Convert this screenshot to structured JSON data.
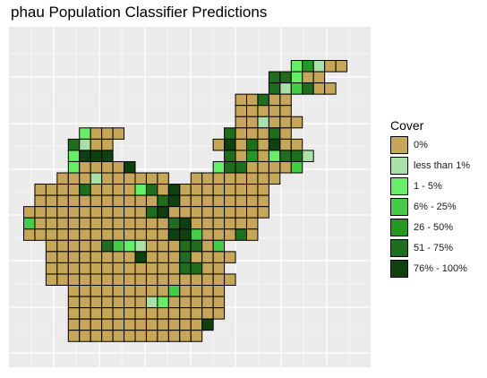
{
  "chart_data": {
    "type": "heatmap",
    "title": "phau Population Classifier Predictions",
    "xlabel": "",
    "ylabel": "",
    "grid": true,
    "legend_placement": "right",
    "legend": {
      "title": "Cover",
      "entries": [
        {
          "label": "0%",
          "color": "#c6a658"
        },
        {
          "label": "less than 1%",
          "color": "#a8e0a8"
        },
        {
          "label": "1 - 5%",
          "color": "#66ee66"
        },
        {
          "label": "6% - 25%",
          "color": "#44cc44"
        },
        {
          "label": "26 - 50%",
          "color": "#229922"
        },
        {
          "label": "51 - 75%",
          "color": "#1e6e1e"
        },
        {
          "label": "76% - 100%",
          "color": "#0f4010"
        }
      ]
    },
    "grid_rows": [
      {
        "row": 0,
        "start": 24,
        "cells": "24100"
      },
      {
        "row": 1,
        "start": 22,
        "cells": "55200"
      },
      {
        "row": 2,
        "start": 22,
        "cells": "513500"
      },
      {
        "row": 3,
        "start": 19,
        "cells": "00500"
      },
      {
        "row": 4,
        "start": 19,
        "cells": "00000"
      },
      {
        "row": 5,
        "start": 19,
        "cells": "001000"
      },
      {
        "row": 6,
        "start": 5,
        "cells": "2000",
        "start2": 18,
        "cells2": "500050"
      },
      {
        "row": 7,
        "start": 4,
        "cells": "5100",
        "start2": 17,
        "cells2": "06050600"
      },
      {
        "row": 8,
        "start": 4,
        "cells": "2666",
        "start2": 18,
        "cells2": "50402551"
      },
      {
        "row": 9,
        "start": 4,
        "cells": "200006",
        "start2": 17,
        "cells2": "25500003"
      },
      {
        "row": 10,
        "start": 3,
        "cells": "0001000000",
        "start2": 15,
        "cells2": "00000000"
      },
      {
        "row": 11,
        "start": 1,
        "cells": "000050000250600000000"
      },
      {
        "row": 12,
        "start": 1,
        "cells": "000000000005600000000"
      },
      {
        "row": 13,
        "start": 0,
        "cells": "000000000005600000000",
        "start2": 21,
        "cells2": "0"
      },
      {
        "row": 14,
        "start": 0,
        "cells": "300000000000056000000"
      },
      {
        "row": 15,
        "start": 0,
        "cells": "000000000000066300050"
      },
      {
        "row": 16,
        "start": 2,
        "cells": "0000053210005503"
      },
      {
        "row": 17,
        "start": 2,
        "cells": "00000000600050000"
      },
      {
        "row": 18,
        "start": 2,
        "cells": "0000000000005500"
      },
      {
        "row": 19,
        "start": 2,
        "cells": "00000000000000000"
      },
      {
        "row": 20,
        "start": 4,
        "cells": "00000000030000"
      },
      {
        "row": 21,
        "start": 4,
        "cells": "00000001200000"
      },
      {
        "row": 22,
        "start": 4,
        "cells": "00000000000000"
      },
      {
        "row": 23,
        "start": 4,
        "cells": "0000000000006"
      },
      {
        "row": 24,
        "start": 4,
        "cells": "000000000000"
      }
    ]
  }
}
